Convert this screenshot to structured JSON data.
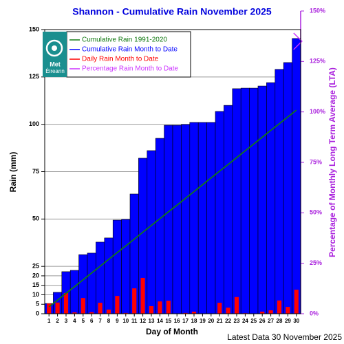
{
  "chart_data": {
    "type": "bar",
    "title": "Shannon - Cumulative Rain November   2025",
    "x_label": "Day of Month",
    "y_label": "Rain (mm)",
    "y2_label": "Percentage  of Monthly Long Term Average (LTA)",
    "footer": "Latest Data 30 November 2025",
    "logo": [
      "Met",
      "Éireann"
    ],
    "categories": [
      "1",
      "2",
      "3",
      "4",
      "5",
      "6",
      "7",
      "8",
      "9",
      "10",
      "11",
      "12",
      "13",
      "14",
      "15",
      "16",
      "17",
      "18",
      "19",
      "20",
      "21",
      "22",
      "23",
      "24",
      "25",
      "26",
      "27",
      "28",
      "29",
      "30"
    ],
    "ylim": [
      0,
      150
    ],
    "yticks": [
      0,
      5,
      10,
      15,
      20,
      25,
      50,
      75,
      100,
      125,
      150
    ],
    "y2lim": [
      0,
      150
    ],
    "y2ticks": [
      {
        "value": 0,
        "label": "0%"
      },
      {
        "value": 25,
        "label": "25%"
      },
      {
        "value": 50,
        "label": "50%"
      },
      {
        "value": 75,
        "label": "75%"
      },
      {
        "value": 100,
        "label": "100%"
      },
      {
        "value": 125,
        "label": "125%"
      },
      {
        "value": 150,
        "label": "150%"
      }
    ],
    "grid": true,
    "legend": "upper left",
    "series": [
      {
        "name": "Cumulative Rain 1991-2020",
        "type": "line",
        "color": "#137a13",
        "values": [
          3.6,
          7.2,
          10.8,
          14.3,
          17.9,
          21.5,
          25.1,
          28.7,
          32.3,
          35.8,
          39.4,
          43,
          46.6,
          50.2,
          53.8,
          57.3,
          60.9,
          64.5,
          68.1,
          71.7,
          75.3,
          78.8,
          82.4,
          86,
          89.6,
          93.2,
          96.8,
          100.3,
          103.9,
          107.5
        ]
      },
      {
        "name": "Cumulative Rain Month to Date",
        "type": "bar",
        "color": "#0000ff",
        "values": [
          5.4,
          11.3,
          22.2,
          22.9,
          31.2,
          32,
          37.8,
          40,
          49.4,
          49.8,
          63.2,
          82.1,
          86.1,
          92.6,
          99.5,
          99.5,
          99.9,
          101,
          101,
          101,
          106.8,
          110,
          118.8,
          119.1,
          119.1,
          120.2,
          122,
          129,
          132.6,
          145.3
        ]
      },
      {
        "name": "Daily Rain Month to Date",
        "type": "bar",
        "color": "#ff0000",
        "values": [
          5.4,
          5.9,
          10.9,
          0.7,
          8.3,
          0.8,
          5.8,
          2.2,
          9.4,
          0.4,
          13.4,
          18.9,
          4,
          6.5,
          6.9,
          0,
          0.4,
          1.1,
          0,
          0,
          5.8,
          3.2,
          8.8,
          0.3,
          0,
          1.1,
          1.8,
          7,
          3.6,
          12.7
        ]
      },
      {
        "name": "Percentage Rain Month to Date",
        "type": "marker",
        "color": "#cc33ff",
        "axis": "y2",
        "values": [
          null,
          null,
          null,
          null,
          null,
          null,
          null,
          null,
          null,
          null,
          null,
          null,
          null,
          null,
          null,
          null,
          null,
          null,
          null,
          null,
          null,
          null,
          null,
          null,
          null,
          null,
          null,
          null,
          null,
          135
        ]
      }
    ]
  }
}
